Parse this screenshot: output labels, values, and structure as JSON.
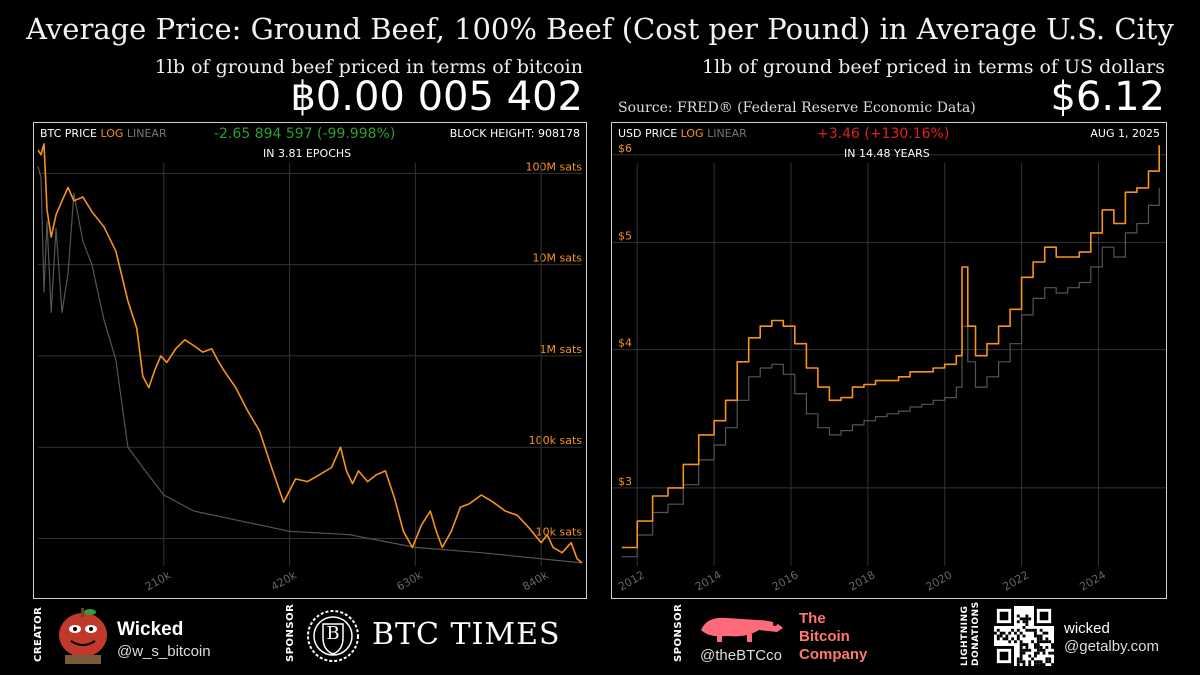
{
  "header": {
    "title": "Average Price: Ground Beef, 100% Beef (Cost per Pound) in Average U.S. City",
    "left_subtitle": "1lb of ground beef priced in terms of bitcoin",
    "left_value": "฿0.00 005 402",
    "right_subtitle": "1lb of ground beef priced in terms of US dollars",
    "right_value": "$6.12",
    "source": "Source: FRED® (Federal Reserve Economic Data)"
  },
  "left_panel": {
    "label_prefix": "BTC PRICE",
    "label_log": "LOG",
    "label_linear": "LINEAR",
    "change": "-2.65 894 597 (-99.998%)",
    "change_color": "#2e9e2e",
    "epochs": "IN 3.81 EPOCHS",
    "block_height": "BLOCK HEIGHT: 908178"
  },
  "right_panel": {
    "label_prefix": "USD PRICE",
    "label_log": "LOG",
    "label_linear": "LINEAR",
    "change": "+3.46 (+130.16%)",
    "change_color": "#e02020",
    "years": "IN 14.48 YEARS",
    "date": "AUG 1, 2025"
  },
  "colors": {
    "accent": "#f7931a",
    "secondary_series": "#555555",
    "grid": "#333333"
  },
  "chart_data": [
    {
      "type": "line",
      "title": "BTC PRICE",
      "scale": "log",
      "x_unit": "block height",
      "xticks": [
        "210k",
        "420k",
        "630k",
        "840k"
      ],
      "x_tick_values": [
        210000,
        420000,
        630000,
        840000
      ],
      "yticks": [
        "10k sats",
        "100k sats",
        "1M sats",
        "10M sats",
        "100M sats"
      ],
      "y_tick_values": [
        10000,
        100000,
        1000000,
        10000000,
        100000000
      ],
      "ylim": [
        5000,
        250000000
      ],
      "xlim": [
        0,
        908178
      ],
      "grid": true,
      "series": [
        {
          "style": "log",
          "color": "#f7931a",
          "x": [
            0,
            5000,
            10000,
            15000,
            22000,
            30000,
            40000,
            50000,
            60000,
            75000,
            90000,
            110000,
            130000,
            150000,
            165000,
            175000,
            185000,
            195000,
            205000,
            215000,
            230000,
            245000,
            260000,
            275000,
            290000,
            300000,
            310000,
            330000,
            350000,
            370000,
            390000,
            410000,
            430000,
            450000,
            470000,
            490000,
            505000,
            515000,
            525000,
            535000,
            550000,
            565000,
            580000,
            595000,
            610000,
            625000,
            640000,
            655000,
            665000,
            675000,
            690000,
            705000,
            720000,
            740000,
            760000,
            780000,
            800000,
            820000,
            840000,
            850000,
            860000,
            875000,
            890000,
            900000,
            908178
          ],
          "y": [
            180000000,
            160000000,
            210000000,
            40000000,
            20000000,
            35000000,
            50000000,
            70000000,
            50000000,
            55000000,
            38000000,
            26000000,
            14000000,
            4000000,
            2000000,
            600000,
            450000,
            700000,
            1000000,
            850000,
            1200000,
            1500000,
            1300000,
            1100000,
            1200000,
            900000,
            700000,
            450000,
            250000,
            150000,
            60000,
            25000,
            45000,
            42000,
            50000,
            60000,
            100000,
            55000,
            40000,
            55000,
            42000,
            50000,
            55000,
            28000,
            12000,
            8000,
            14000,
            20000,
            12000,
            8000,
            12000,
            22000,
            24000,
            30000,
            25000,
            20000,
            18000,
            13000,
            9000,
            11000,
            8000,
            7000,
            9000,
            6000,
            5402
          ]
        },
        {
          "style": "linear",
          "color": "#555555",
          "x": [
            0,
            5000,
            10000,
            15000,
            22000,
            30000,
            40000,
            50000,
            60000,
            75000,
            90000,
            110000,
            130000,
            150000,
            175000,
            210000,
            260000,
            330000,
            420000,
            520000,
            630000,
            740000,
            840000,
            908178
          ],
          "y": [
            120000000,
            90000000,
            5000000,
            30000000,
            3000000,
            25000000,
            3000000,
            8000000,
            60000000,
            18000000,
            10000000,
            2500000,
            900000,
            100000,
            60000,
            30000,
            20000,
            16000,
            12000,
            11000,
            8000,
            7000,
            6000,
            5402
          ]
        }
      ]
    },
    {
      "type": "line",
      "title": "USD PRICE",
      "scale": "log",
      "x_unit": "year",
      "xticks": [
        "2012",
        "2014",
        "2016",
        "2018",
        "2020",
        "2022",
        "2024"
      ],
      "x_tick_values": [
        2012,
        2014,
        2016,
        2018,
        2020,
        2022,
        2024
      ],
      "yticks": [
        "$3",
        "$4",
        "$5",
        "$6"
      ],
      "y_tick_values": [
        3,
        4,
        5,
        6
      ],
      "ylim": [
        2.55,
        6.2
      ],
      "xlim": [
        2011.5,
        2025.6
      ],
      "grid": true,
      "series": [
        {
          "style": "log",
          "color": "#f7931a",
          "x": [
            2011.6,
            2012.0,
            2012.4,
            2012.8,
            2013.2,
            2013.6,
            2014.0,
            2014.3,
            2014.6,
            2014.9,
            2015.2,
            2015.5,
            2015.8,
            2016.1,
            2016.4,
            2016.7,
            2017.0,
            2017.3,
            2017.6,
            2017.9,
            2018.2,
            2018.5,
            2018.8,
            2019.1,
            2019.4,
            2019.7,
            2020.0,
            2020.3,
            2020.45,
            2020.6,
            2020.8,
            2021.1,
            2021.4,
            2021.7,
            2022.0,
            2022.3,
            2022.6,
            2022.9,
            2023.2,
            2023.5,
            2023.8,
            2024.1,
            2024.4,
            2024.7,
            2025.0,
            2025.3,
            2025.58
          ],
          "y": [
            2.65,
            2.8,
            2.95,
            3.0,
            3.15,
            3.35,
            3.45,
            3.6,
            3.9,
            4.1,
            4.2,
            4.25,
            4.2,
            4.05,
            3.85,
            3.7,
            3.6,
            3.62,
            3.7,
            3.72,
            3.75,
            3.75,
            3.78,
            3.82,
            3.82,
            3.85,
            3.88,
            3.95,
            4.75,
            4.2,
            3.95,
            4.05,
            4.2,
            4.35,
            4.65,
            4.8,
            4.95,
            4.85,
            4.85,
            4.9,
            5.1,
            5.35,
            5.2,
            5.55,
            5.6,
            5.8,
            6.12
          ]
        },
        {
          "style": "linear",
          "color": "#555555",
          "x": [
            2011.6,
            2012.0,
            2012.4,
            2012.8,
            2013.2,
            2013.6,
            2014.0,
            2014.3,
            2014.6,
            2014.9,
            2015.2,
            2015.5,
            2015.8,
            2016.1,
            2016.4,
            2016.7,
            2017.0,
            2017.3,
            2017.6,
            2017.9,
            2018.2,
            2018.5,
            2018.8,
            2019.1,
            2019.4,
            2019.7,
            2020.0,
            2020.3,
            2020.45,
            2020.6,
            2020.8,
            2021.1,
            2021.4,
            2021.7,
            2022.0,
            2022.3,
            2022.6,
            2022.9,
            2023.2,
            2023.5,
            2023.8,
            2024.1,
            2024.4,
            2024.7,
            2025.0,
            2025.3,
            2025.58
          ],
          "y": [
            2.6,
            2.72,
            2.85,
            2.9,
            3.02,
            3.18,
            3.28,
            3.4,
            3.6,
            3.78,
            3.85,
            3.88,
            3.8,
            3.65,
            3.5,
            3.4,
            3.35,
            3.38,
            3.42,
            3.45,
            3.48,
            3.5,
            3.52,
            3.55,
            3.57,
            3.6,
            3.62,
            3.7,
            4.2,
            3.9,
            3.7,
            3.78,
            3.9,
            4.05,
            4.3,
            4.45,
            4.55,
            4.5,
            4.55,
            4.6,
            4.75,
            4.95,
            4.85,
            5.1,
            5.2,
            5.4,
            5.6
          ]
        }
      ]
    }
  ],
  "footer": {
    "creator_label": "CREATOR",
    "creator_name": "Wicked",
    "creator_handle": "@w_s_bitcoin",
    "sponsor_label": "SPONSOR",
    "sponsor1_name": "BTC TIMES",
    "sponsor1_logo_letter": "B",
    "sponsor2_label": "SPONSOR",
    "sponsor2_handle": "@theBTCco",
    "sponsor2_name_line1": "The",
    "sponsor2_name_line2": "Bitcoin",
    "sponsor2_name_line3": "Company",
    "lightning_label_line1": "LIGHTNING",
    "lightning_label_line2": "DONATIONS",
    "lightning_name": "wicked",
    "lightning_address": "@getalby.com"
  }
}
